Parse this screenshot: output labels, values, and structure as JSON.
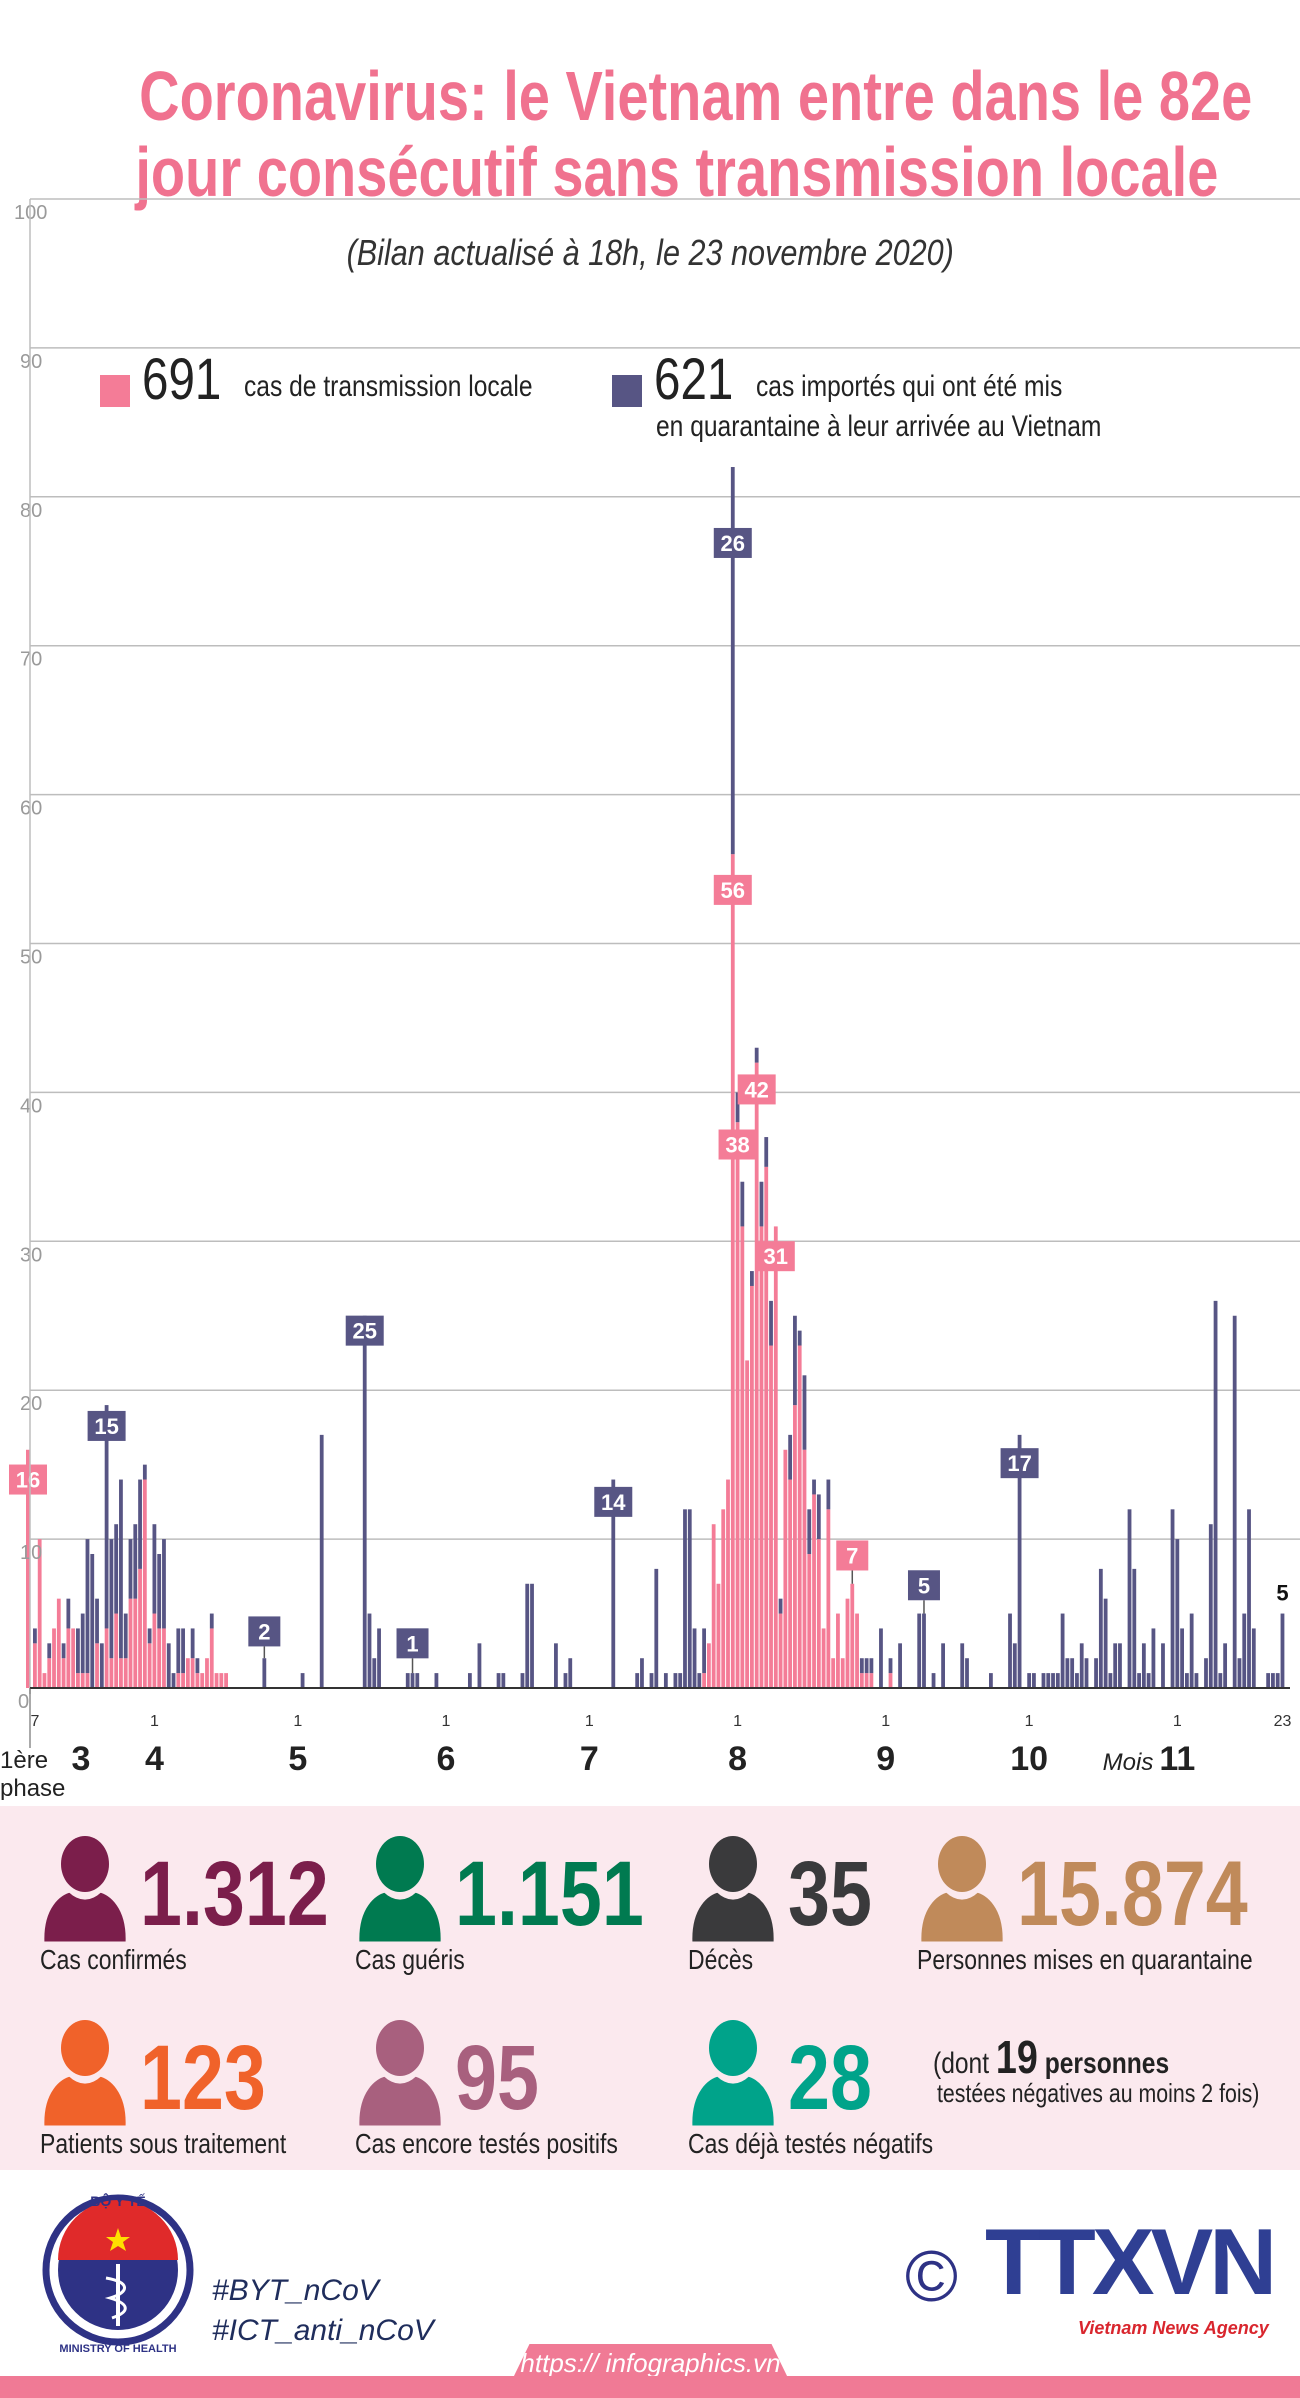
{
  "title": {
    "line1": "Coronavirus: le Vietnam entre dans le 82e",
    "line2": "jour consécutif sans transmission locale",
    "subtitle": "(Bilan actualisé à 18h, le 23 novembre 2020)"
  },
  "legend": {
    "local": {
      "count": "691",
      "text": "cas de transmission locale",
      "color": "#F47C97"
    },
    "imported": {
      "count": "621",
      "text_line1": "cas importés qui ont été mis",
      "text_line2": "en quarantaine à leur arrivée au Vietnam",
      "color": "#575584"
    }
  },
  "chart_data": {
    "type": "bar",
    "stacked": true,
    "ylim": [
      0,
      100
    ],
    "grid": true,
    "y_ticks": [
      "0",
      "10",
      "20",
      "30",
      "40",
      "50",
      "60",
      "70",
      "80",
      "90",
      "100"
    ],
    "series": [
      {
        "key": "local",
        "color": "#F47C97"
      },
      {
        "key": "imported",
        "color": "#575584"
      }
    ],
    "first_phase": {
      "label_line1": "1ère",
      "label_line2": "phase",
      "local": 16,
      "data_label": "16"
    },
    "days_format": [
      "date",
      "local",
      "imported"
    ],
    "days": [
      [
        "03-07",
        3,
        1
      ],
      [
        "03-08",
        10,
        0
      ],
      [
        "03-09",
        1,
        0
      ],
      [
        "03-10",
        2,
        1
      ],
      [
        "03-11",
        4,
        0
      ],
      [
        "03-12",
        6,
        0
      ],
      [
        "03-13",
        2,
        1
      ],
      [
        "03-14",
        4,
        2
      ],
      [
        "03-15",
        4,
        0
      ],
      [
        "03-16",
        1,
        3
      ],
      [
        "03-17",
        1,
        4
      ],
      [
        "03-18",
        1,
        9
      ],
      [
        "03-19",
        0,
        9
      ],
      [
        "03-20",
        3,
        3
      ],
      [
        "03-21",
        0,
        3
      ],
      [
        "03-22",
        4,
        15
      ],
      [
        "03-23",
        2,
        8
      ],
      [
        "03-24",
        5,
        6
      ],
      [
        "03-25",
        2,
        12
      ],
      [
        "03-26",
        2,
        3
      ],
      [
        "03-27",
        6,
        4
      ],
      [
        "03-28",
        6,
        5
      ],
      [
        "03-29",
        8,
        6
      ],
      [
        "03-30",
        14,
        1
      ],
      [
        "03-31",
        3,
        1
      ],
      [
        "04-01",
        5,
        6
      ],
      [
        "04-02",
        4,
        5
      ],
      [
        "04-03",
        4,
        6
      ],
      [
        "04-04",
        0,
        3
      ],
      [
        "04-05",
        0,
        1
      ],
      [
        "04-06",
        1,
        3
      ],
      [
        "04-07",
        1,
        3
      ],
      [
        "04-08",
        2,
        0
      ],
      [
        "04-09",
        2,
        2
      ],
      [
        "04-10",
        1,
        1
      ],
      [
        "04-11",
        1,
        0
      ],
      [
        "04-12",
        2,
        0
      ],
      [
        "04-13",
        4,
        1
      ],
      [
        "04-14",
        1,
        0
      ],
      [
        "04-15",
        1,
        0
      ],
      [
        "04-16",
        1,
        0
      ],
      [
        "04-24",
        0,
        2
      ],
      [
        "05-02",
        0,
        1
      ],
      [
        "05-06",
        0,
        17
      ],
      [
        "05-15",
        0,
        25
      ],
      [
        "05-16",
        0,
        5
      ],
      [
        "05-17",
        0,
        2
      ],
      [
        "05-18",
        0,
        4
      ],
      [
        "05-24",
        0,
        1
      ],
      [
        "05-25",
        0,
        1
      ],
      [
        "05-26",
        0,
        1
      ],
      [
        "05-30",
        0,
        1
      ],
      [
        "06-06",
        0,
        1
      ],
      [
        "06-08",
        0,
        3
      ],
      [
        "06-12",
        0,
        1
      ],
      [
        "06-13",
        0,
        1
      ],
      [
        "06-17",
        0,
        1
      ],
      [
        "06-18",
        0,
        7
      ],
      [
        "06-19",
        0,
        7
      ],
      [
        "06-24",
        0,
        3
      ],
      [
        "06-26",
        0,
        1
      ],
      [
        "06-27",
        0,
        2
      ],
      [
        "07-06",
        0,
        14
      ],
      [
        "07-11",
        0,
        1
      ],
      [
        "07-12",
        0,
        2
      ],
      [
        "07-14",
        0,
        1
      ],
      [
        "07-15",
        0,
        8
      ],
      [
        "07-17",
        0,
        1
      ],
      [
        "07-19",
        0,
        1
      ],
      [
        "07-20",
        0,
        1
      ],
      [
        "07-21",
        0,
        12
      ],
      [
        "07-22",
        0,
        12
      ],
      [
        "07-23",
        0,
        4
      ],
      [
        "07-24",
        0,
        1
      ],
      [
        "07-25",
        1,
        3
      ],
      [
        "07-26",
        3,
        0
      ],
      [
        "07-27",
        11,
        0
      ],
      [
        "07-28",
        7,
        0
      ],
      [
        "07-29",
        12,
        0
      ],
      [
        "07-30",
        14,
        0
      ],
      [
        "07-31",
        56,
        26
      ],
      [
        "08-01",
        38,
        2
      ],
      [
        "08-02",
        31,
        3
      ],
      [
        "08-03",
        22,
        0
      ],
      [
        "08-04",
        27,
        1
      ],
      [
        "08-05",
        42,
        1
      ],
      [
        "08-06",
        31,
        3
      ],
      [
        "08-07",
        35,
        2
      ],
      [
        "08-08",
        23,
        3
      ],
      [
        "08-09",
        31,
        0
      ],
      [
        "08-10",
        5,
        1
      ],
      [
        "08-11",
        16,
        0
      ],
      [
        "08-12",
        14,
        3
      ],
      [
        "08-13",
        19,
        6
      ],
      [
        "08-14",
        23,
        1
      ],
      [
        "08-15",
        16,
        5
      ],
      [
        "08-16",
        9,
        3
      ],
      [
        "08-17",
        13,
        1
      ],
      [
        "08-18",
        10,
        3
      ],
      [
        "08-19",
        4,
        0
      ],
      [
        "08-20",
        12,
        2
      ],
      [
        "08-21",
        2,
        0
      ],
      [
        "08-22",
        5,
        0
      ],
      [
        "08-23",
        2,
        0
      ],
      [
        "08-24",
        6,
        0
      ],
      [
        "08-25",
        7,
        0
      ],
      [
        "08-26",
        5,
        0
      ],
      [
        "08-27",
        1,
        1
      ],
      [
        "08-28",
        1,
        1
      ],
      [
        "08-29",
        1,
        1
      ],
      [
        "08-31",
        0,
        4
      ],
      [
        "09-02",
        1,
        1
      ],
      [
        "09-04",
        0,
        3
      ],
      [
        "09-08",
        0,
        5
      ],
      [
        "09-09",
        0,
        5
      ],
      [
        "09-11",
        0,
        1
      ],
      [
        "09-13",
        0,
        3
      ],
      [
        "09-17",
        0,
        3
      ],
      [
        "09-18",
        0,
        2
      ],
      [
        "09-23",
        0,
        1
      ],
      [
        "09-27",
        0,
        5
      ],
      [
        "09-28",
        0,
        3
      ],
      [
        "09-29",
        0,
        17
      ],
      [
        "10-01",
        0,
        1
      ],
      [
        "10-02",
        0,
        1
      ],
      [
        "10-04",
        0,
        1
      ],
      [
        "10-05",
        0,
        1
      ],
      [
        "10-06",
        0,
        1
      ],
      [
        "10-07",
        0,
        1
      ],
      [
        "10-08",
        0,
        5
      ],
      [
        "10-09",
        0,
        2
      ],
      [
        "10-10",
        0,
        2
      ],
      [
        "10-11",
        0,
        1
      ],
      [
        "10-12",
        0,
        3
      ],
      [
        "10-13",
        0,
        2
      ],
      [
        "10-15",
        0,
        2
      ],
      [
        "10-16",
        0,
        8
      ],
      [
        "10-17",
        0,
        6
      ],
      [
        "10-18",
        0,
        1
      ],
      [
        "10-19",
        0,
        3
      ],
      [
        "10-20",
        0,
        3
      ],
      [
        "10-22",
        0,
        12
      ],
      [
        "10-23",
        0,
        8
      ],
      [
        "10-24",
        0,
        1
      ],
      [
        "10-25",
        0,
        3
      ],
      [
        "10-26",
        0,
        1
      ],
      [
        "10-27",
        0,
        4
      ],
      [
        "10-29",
        0,
        3
      ],
      [
        "10-31",
        0,
        12
      ],
      [
        "11-01",
        0,
        10
      ],
      [
        "11-02",
        0,
        4
      ],
      [
        "11-03",
        0,
        1
      ],
      [
        "11-04",
        0,
        5
      ],
      [
        "11-05",
        0,
        1
      ],
      [
        "11-07",
        0,
        2
      ],
      [
        "11-08",
        0,
        11
      ],
      [
        "11-09",
        0,
        26
      ],
      [
        "11-10",
        0,
        1
      ],
      [
        "11-11",
        0,
        3
      ],
      [
        "11-13",
        0,
        25
      ],
      [
        "11-14",
        0,
        2
      ],
      [
        "11-15",
        0,
        5
      ],
      [
        "11-16",
        0,
        12
      ],
      [
        "11-17",
        0,
        4
      ],
      [
        "11-20",
        0,
        1
      ],
      [
        "11-21",
        0,
        1
      ],
      [
        "11-22",
        0,
        1
      ],
      [
        "11-23",
        0,
        5
      ]
    ],
    "data_labels": [
      {
        "date": "03-22",
        "text": "15",
        "series": "imported"
      },
      {
        "date": "04-24",
        "text": "2",
        "series": "imported"
      },
      {
        "date": "05-15",
        "text": "25",
        "series": "imported"
      },
      {
        "date": "05-25",
        "text": "1",
        "series": "imported"
      },
      {
        "date": "07-06",
        "text": "14",
        "series": "imported"
      },
      {
        "date": "07-31",
        "text": "26",
        "series": "imported"
      },
      {
        "date": "07-31",
        "text": "56",
        "series": "local"
      },
      {
        "date": "08-01",
        "text": "38",
        "series": "local"
      },
      {
        "date": "08-05",
        "text": "42",
        "series": "local"
      },
      {
        "date": "08-09",
        "text": "31",
        "series": "local"
      },
      {
        "date": "08-25",
        "text": "7",
        "series": "local"
      },
      {
        "date": "09-09",
        "text": "5",
        "series": "imported"
      },
      {
        "date": "09-29",
        "text": "17",
        "series": "imported"
      },
      {
        "date": "11-23",
        "text": "5",
        "series": "plain"
      }
    ],
    "x_ticks": [
      {
        "date": "03-07",
        "label": "7"
      },
      {
        "date": "04-01",
        "label": "1"
      },
      {
        "date": "05-01",
        "label": "1"
      },
      {
        "date": "06-01",
        "label": "1"
      },
      {
        "date": "07-01",
        "label": "1"
      },
      {
        "date": "08-01",
        "label": "1"
      },
      {
        "date": "09-01",
        "label": "1"
      },
      {
        "date": "10-01",
        "label": "1"
      },
      {
        "date": "11-01",
        "label": "1"
      },
      {
        "date": "11-23",
        "label": "23"
      }
    ],
    "month_labels": [
      "3",
      "4",
      "5",
      "6",
      "7",
      "8",
      "9",
      "10",
      "11"
    ],
    "month_prefix": "Mois"
  },
  "stats": [
    {
      "value": "1.312",
      "label": "Cas confirmés",
      "color": "#7B1E4B"
    },
    {
      "value": "1.151",
      "label": "Cas guéris",
      "color": "#007A50"
    },
    {
      "value": "35",
      "label": "Décès",
      "color": "#3A3A3C"
    },
    {
      "value": "15.874",
      "label": "Personnes mises en quarantaine",
      "color": "#C08A5A"
    },
    {
      "value": "123",
      "label": "Patients sous traitement",
      "color": "#F0622A"
    },
    {
      "value": "95",
      "label": "Cas encore testés positifs",
      "color": "#A8607E"
    },
    {
      "value": "28",
      "label": "Cas déjà testés négatifs",
      "color": "#00A38A"
    }
  ],
  "note": {
    "prefix": "(dont",
    "number": "19",
    "suffix": "personnes",
    "line2": "testées négatives au moins 2 fois)"
  },
  "footer": {
    "ministry_logo_text": [
      "BỘ Y TẾ",
      "MINISTRY OF HEALTH"
    ],
    "hashtags": [
      "#BYT_nCoV",
      "#ICT_anti_nCoV"
    ],
    "copyright_symbol": "©",
    "agency_logo": "TTXVN",
    "agency_name": "Vietnam News Agency",
    "url": "https:// infographics.vn"
  }
}
